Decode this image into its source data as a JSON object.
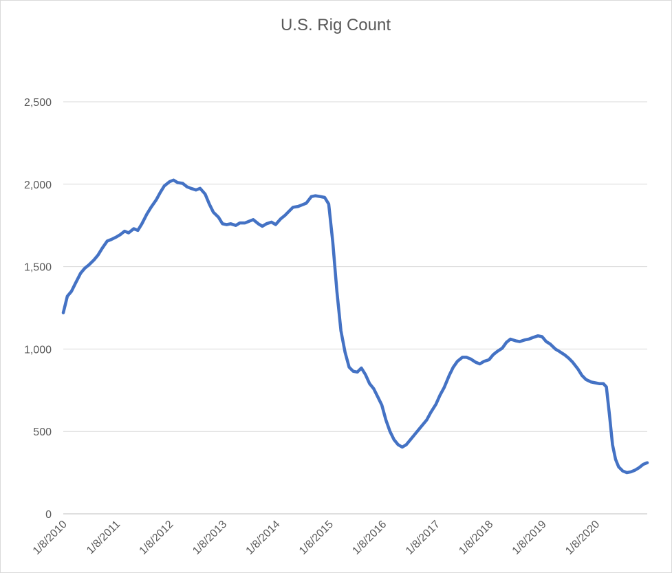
{
  "chart_data": {
    "type": "line",
    "title": "U.S. Rig Count",
    "xlabel": "",
    "ylabel": "",
    "x_ticks": [
      "1/8/2010",
      "1/8/2011",
      "1/8/2012",
      "1/8/2013",
      "1/8/2014",
      "1/8/2015",
      "1/8/2016",
      "1/8/2017",
      "1/8/2018",
      "1/8/2019",
      "1/8/2020"
    ],
    "y_ticks": [
      "0",
      "500",
      "1,000",
      "1,500",
      "2,000",
      "2,500"
    ],
    "ylim": [
      0,
      2500
    ],
    "xlim": [
      "2010-01-08",
      "2020-12-25"
    ],
    "grid": "horizontal",
    "legend": "none",
    "series": [
      {
        "color": "#4472c4",
        "points": [
          [
            "2010-01-08",
            1220
          ],
          [
            "2010-02-05",
            1320
          ],
          [
            "2010-03-05",
            1350
          ],
          [
            "2010-04-02",
            1400
          ],
          [
            "2010-05-07",
            1460
          ],
          [
            "2010-06-04",
            1490
          ],
          [
            "2010-07-02",
            1510
          ],
          [
            "2010-08-06",
            1540
          ],
          [
            "2010-09-03",
            1570
          ],
          [
            "2010-10-01",
            1610
          ],
          [
            "2010-11-05",
            1655
          ],
          [
            "2010-12-03",
            1665
          ],
          [
            "2011-01-07",
            1680
          ],
          [
            "2011-02-04",
            1695
          ],
          [
            "2011-03-04",
            1715
          ],
          [
            "2011-04-01",
            1705
          ],
          [
            "2011-05-06",
            1730
          ],
          [
            "2011-06-03",
            1720
          ],
          [
            "2011-07-01",
            1760
          ],
          [
            "2011-08-05",
            1820
          ],
          [
            "2011-09-02",
            1860
          ],
          [
            "2011-10-07",
            1905
          ],
          [
            "2011-11-04",
            1950
          ],
          [
            "2011-12-02",
            1990
          ],
          [
            "2012-01-06",
            2015
          ],
          [
            "2012-02-03",
            2025
          ],
          [
            "2012-03-02",
            2010
          ],
          [
            "2012-04-06",
            2005
          ],
          [
            "2012-05-04",
            1985
          ],
          [
            "2012-06-01",
            1975
          ],
          [
            "2012-07-06",
            1965
          ],
          [
            "2012-08-03",
            1975
          ],
          [
            "2012-09-07",
            1940
          ],
          [
            "2012-10-05",
            1880
          ],
          [
            "2012-11-02",
            1830
          ],
          [
            "2012-12-07",
            1800
          ],
          [
            "2013-01-04",
            1760
          ],
          [
            "2013-02-01",
            1755
          ],
          [
            "2013-03-01",
            1760
          ],
          [
            "2013-04-05",
            1750
          ],
          [
            "2013-05-03",
            1765
          ],
          [
            "2013-06-07",
            1765
          ],
          [
            "2013-07-05",
            1775
          ],
          [
            "2013-08-02",
            1785
          ],
          [
            "2013-09-06",
            1760
          ],
          [
            "2013-10-04",
            1745
          ],
          [
            "2013-11-01",
            1760
          ],
          [
            "2013-12-06",
            1770
          ],
          [
            "2014-01-03",
            1755
          ],
          [
            "2014-02-07",
            1790
          ],
          [
            "2014-03-07",
            1810
          ],
          [
            "2014-04-04",
            1835
          ],
          [
            "2014-05-02",
            1860
          ],
          [
            "2014-06-06",
            1865
          ],
          [
            "2014-07-04",
            1875
          ],
          [
            "2014-08-01",
            1885
          ],
          [
            "2014-09-05",
            1925
          ],
          [
            "2014-10-03",
            1930
          ],
          [
            "2014-11-07",
            1925
          ],
          [
            "2014-12-05",
            1920
          ],
          [
            "2015-01-02",
            1880
          ],
          [
            "2015-01-30",
            1650
          ],
          [
            "2015-02-27",
            1350
          ],
          [
            "2015-03-27",
            1110
          ],
          [
            "2015-04-24",
            980
          ],
          [
            "2015-05-22",
            890
          ],
          [
            "2015-06-19",
            865
          ],
          [
            "2015-07-17",
            860
          ],
          [
            "2015-08-14",
            885
          ],
          [
            "2015-09-11",
            845
          ],
          [
            "2015-10-09",
            790
          ],
          [
            "2015-11-06",
            760
          ],
          [
            "2015-12-04",
            710
          ],
          [
            "2016-01-01",
            660
          ],
          [
            "2016-01-29",
            570
          ],
          [
            "2016-02-26",
            500
          ],
          [
            "2016-03-25",
            450
          ],
          [
            "2016-04-22",
            420
          ],
          [
            "2016-05-20",
            405
          ],
          [
            "2016-06-17",
            420
          ],
          [
            "2016-07-15",
            450
          ],
          [
            "2016-08-12",
            480
          ],
          [
            "2016-09-09",
            510
          ],
          [
            "2016-10-07",
            540
          ],
          [
            "2016-11-04",
            570
          ],
          [
            "2016-12-02",
            615
          ],
          [
            "2017-01-06",
            665
          ],
          [
            "2017-02-03",
            720
          ],
          [
            "2017-03-03",
            765
          ],
          [
            "2017-04-07",
            840
          ],
          [
            "2017-05-05",
            890
          ],
          [
            "2017-06-02",
            925
          ],
          [
            "2017-07-07",
            950
          ],
          [
            "2017-08-04",
            950
          ],
          [
            "2017-09-01",
            940
          ],
          [
            "2017-10-06",
            920
          ],
          [
            "2017-11-03",
            910
          ],
          [
            "2017-12-01",
            925
          ],
          [
            "2018-01-05",
            935
          ],
          [
            "2018-02-02",
            965
          ],
          [
            "2018-03-02",
            985
          ],
          [
            "2018-04-06",
            1005
          ],
          [
            "2018-05-04",
            1040
          ],
          [
            "2018-06-01",
            1060
          ],
          [
            "2018-07-06",
            1050
          ],
          [
            "2018-08-03",
            1045
          ],
          [
            "2018-09-07",
            1055
          ],
          [
            "2018-10-05",
            1060
          ],
          [
            "2018-11-02",
            1070
          ],
          [
            "2018-12-07",
            1080
          ],
          [
            "2019-01-04",
            1075
          ],
          [
            "2019-02-01",
            1045
          ],
          [
            "2019-03-01",
            1030
          ],
          [
            "2019-04-05",
            1000
          ],
          [
            "2019-05-03",
            985
          ],
          [
            "2019-06-07",
            965
          ],
          [
            "2019-07-05",
            945
          ],
          [
            "2019-08-02",
            920
          ],
          [
            "2019-09-06",
            880
          ],
          [
            "2019-10-04",
            840
          ],
          [
            "2019-11-01",
            815
          ],
          [
            "2019-12-06",
            800
          ],
          [
            "2020-01-03",
            795
          ],
          [
            "2020-01-31",
            790
          ],
          [
            "2020-02-28",
            790
          ],
          [
            "2020-03-20",
            770
          ],
          [
            "2020-04-10",
            600
          ],
          [
            "2020-05-01",
            420
          ],
          [
            "2020-05-22",
            330
          ],
          [
            "2020-06-12",
            285
          ],
          [
            "2020-07-10",
            260
          ],
          [
            "2020-08-07",
            250
          ],
          [
            "2020-09-04",
            255
          ],
          [
            "2020-10-02",
            265
          ],
          [
            "2020-10-30",
            280
          ],
          [
            "2020-11-27",
            300
          ],
          [
            "2020-12-25",
            310
          ]
        ]
      }
    ]
  }
}
